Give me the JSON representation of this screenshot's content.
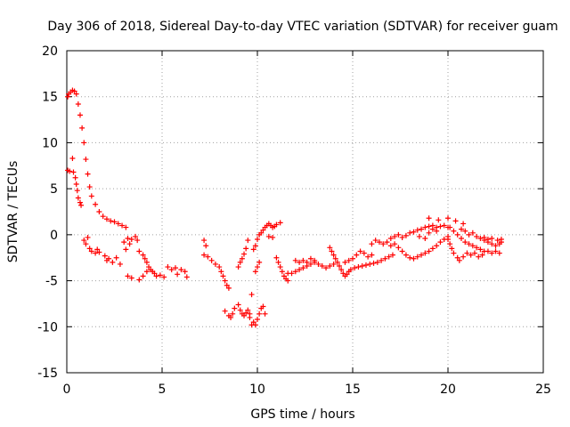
{
  "chart_data": {
    "type": "scatter",
    "title": "Day 306 of 2018, Sidereal Day-to-day VTEC variation (SDTVAR) for receiver guam",
    "xlabel": "GPS time / hours",
    "ylabel": "SDTVAR / TECUs",
    "xlim": [
      0,
      25
    ],
    "ylim": [
      -15,
      20
    ],
    "x_ticks": [
      0,
      5,
      10,
      15,
      20,
      25
    ],
    "y_ticks": [
      -15,
      -10,
      -5,
      0,
      5,
      10,
      15,
      20
    ],
    "x_tick_labels": [
      "0",
      "5",
      "10",
      "15",
      "20",
      "25"
    ],
    "y_tick_labels": [
      "-15",
      "-10",
      "-5",
      "0",
      "5",
      "10",
      "15",
      "20"
    ],
    "grid": true,
    "marker": "+",
    "series": [
      {
        "name": "SDTVAR",
        "color": "#ff0000",
        "points": [
          [
            0.05,
            15.0
          ],
          [
            0.1,
            15.3
          ],
          [
            0.2,
            15.5
          ],
          [
            0.3,
            15.7
          ],
          [
            0.4,
            15.6
          ],
          [
            0.5,
            15.3
          ],
          [
            0.6,
            14.2
          ],
          [
            0.7,
            13.0
          ],
          [
            0.8,
            11.6
          ],
          [
            0.9,
            10.0
          ],
          [
            1.0,
            8.2
          ],
          [
            1.1,
            6.6
          ],
          [
            1.2,
            5.2
          ],
          [
            1.3,
            4.2
          ],
          [
            1.5,
            3.3
          ],
          [
            1.7,
            2.5
          ],
          [
            1.9,
            2.0
          ],
          [
            2.1,
            1.7
          ],
          [
            2.3,
            1.5
          ],
          [
            2.5,
            1.4
          ],
          [
            2.7,
            1.2
          ],
          [
            2.9,
            1.0
          ],
          [
            3.1,
            0.8
          ],
          [
            0.05,
            7.0
          ],
          [
            0.15,
            6.9
          ],
          [
            0.3,
            8.3
          ],
          [
            0.35,
            6.8
          ],
          [
            0.45,
            6.2
          ],
          [
            0.5,
            5.5
          ],
          [
            0.55,
            4.8
          ],
          [
            0.6,
            4.0
          ],
          [
            0.7,
            3.5
          ],
          [
            0.75,
            3.2
          ],
          [
            0.9,
            -0.6
          ],
          [
            1.0,
            -1.0
          ],
          [
            1.1,
            -0.3
          ],
          [
            1.2,
            -1.5
          ],
          [
            1.3,
            -1.8
          ],
          [
            1.5,
            -2.0
          ],
          [
            1.6,
            -1.6
          ],
          [
            1.7,
            -1.9
          ],
          [
            2.0,
            -2.3
          ],
          [
            2.1,
            -2.8
          ],
          [
            2.2,
            -2.6
          ],
          [
            2.4,
            -3.0
          ],
          [
            2.6,
            -2.5
          ],
          [
            2.8,
            -3.2
          ],
          [
            3.0,
            -0.8
          ],
          [
            3.1,
            -1.6
          ],
          [
            3.2,
            -0.4
          ],
          [
            3.3,
            -1.0
          ],
          [
            3.4,
            -0.5
          ],
          [
            3.6,
            -0.2
          ],
          [
            3.7,
            -0.6
          ],
          [
            3.2,
            -4.5
          ],
          [
            3.4,
            -4.7
          ],
          [
            3.8,
            -4.9
          ],
          [
            4.0,
            -4.5
          ],
          [
            4.2,
            -4.0
          ],
          [
            3.8,
            -1.8
          ],
          [
            4.0,
            -2.2
          ],
          [
            4.1,
            -2.6
          ],
          [
            4.2,
            -3.0
          ],
          [
            4.3,
            -3.5
          ],
          [
            4.4,
            -3.8
          ],
          [
            4.5,
            -4.0
          ],
          [
            4.6,
            -4.2
          ],
          [
            4.7,
            -4.5
          ],
          [
            4.9,
            -4.4
          ],
          [
            5.1,
            -4.6
          ],
          [
            5.3,
            -3.5
          ],
          [
            5.5,
            -3.8
          ],
          [
            5.7,
            -3.6
          ],
          [
            5.8,
            -4.3
          ],
          [
            6.0,
            -3.8
          ],
          [
            6.2,
            -4.0
          ],
          [
            6.3,
            -4.6
          ],
          [
            7.2,
            -0.6
          ],
          [
            7.3,
            -1.2
          ],
          [
            7.2,
            -2.2
          ],
          [
            7.4,
            -2.4
          ],
          [
            7.6,
            -2.8
          ],
          [
            7.8,
            -3.2
          ],
          [
            8.0,
            -3.5
          ],
          [
            8.1,
            -4.0
          ],
          [
            8.2,
            -4.5
          ],
          [
            8.3,
            -5.0
          ],
          [
            8.4,
            -5.5
          ],
          [
            8.5,
            -5.8
          ],
          [
            8.3,
            -8.3
          ],
          [
            8.5,
            -8.8
          ],
          [
            8.6,
            -9.0
          ],
          [
            8.7,
            -8.6
          ],
          [
            8.8,
            -8.0
          ],
          [
            9.0,
            -7.6
          ],
          [
            9.1,
            -8.2
          ],
          [
            9.2,
            -8.6
          ],
          [
            9.3,
            -8.8
          ],
          [
            9.4,
            -8.5
          ],
          [
            9.5,
            -8.2
          ],
          [
            9.6,
            -8.6
          ],
          [
            9.0,
            -3.5
          ],
          [
            9.1,
            -3.0
          ],
          [
            9.2,
            -2.6
          ],
          [
            9.3,
            -2.1
          ],
          [
            9.4,
            -1.5
          ],
          [
            9.5,
            -0.6
          ],
          [
            9.6,
            -9.0
          ],
          [
            9.7,
            -9.8
          ],
          [
            9.8,
            -9.5
          ],
          [
            9.9,
            -9.8
          ],
          [
            10.0,
            -9.2
          ],
          [
            10.1,
            -8.6
          ],
          [
            10.2,
            -8.0
          ],
          [
            10.3,
            -7.8
          ],
          [
            10.4,
            -8.6
          ],
          [
            9.7,
            -6.5
          ],
          [
            9.9,
            -4.0
          ],
          [
            10.0,
            -3.5
          ],
          [
            10.1,
            -3.0
          ],
          [
            9.8,
            -1.6
          ],
          [
            9.9,
            -1.2
          ],
          [
            10.0,
            -0.5
          ],
          [
            10.1,
            0.0
          ],
          [
            10.2,
            0.2
          ],
          [
            10.3,
            0.5
          ],
          [
            10.4,
            0.8
          ],
          [
            10.5,
            1.0
          ],
          [
            10.6,
            1.2
          ],
          [
            10.7,
            1.0
          ],
          [
            10.8,
            0.8
          ],
          [
            10.9,
            0.9
          ],
          [
            11.0,
            1.1
          ],
          [
            11.2,
            1.3
          ],
          [
            10.6,
            -0.2
          ],
          [
            10.8,
            -0.3
          ],
          [
            11.0,
            -2.5
          ],
          [
            11.1,
            -3.0
          ],
          [
            11.2,
            -3.5
          ],
          [
            11.3,
            -4.0
          ],
          [
            11.4,
            -4.5
          ],
          [
            11.5,
            -4.8
          ],
          [
            11.6,
            -5.0
          ],
          [
            11.6,
            -4.2
          ],
          [
            11.8,
            -4.2
          ],
          [
            12.0,
            -4.0
          ],
          [
            12.2,
            -3.8
          ],
          [
            12.4,
            -3.6
          ],
          [
            12.6,
            -3.4
          ],
          [
            12.8,
            -3.2
          ],
          [
            13.0,
            -3.0
          ],
          [
            13.2,
            -3.2
          ],
          [
            13.4,
            -3.4
          ],
          [
            13.6,
            -3.6
          ],
          [
            13.8,
            -3.4
          ],
          [
            14.0,
            -3.2
          ],
          [
            12.0,
            -2.8
          ],
          [
            12.2,
            -3.0
          ],
          [
            12.4,
            -2.8
          ],
          [
            12.6,
            -3.0
          ],
          [
            12.8,
            -2.6
          ],
          [
            13.0,
            -2.8
          ],
          [
            13.8,
            -1.4
          ],
          [
            13.9,
            -1.8
          ],
          [
            14.0,
            -2.2
          ],
          [
            14.1,
            -2.6
          ],
          [
            14.2,
            -3.0
          ],
          [
            14.3,
            -3.4
          ],
          [
            14.4,
            -3.8
          ],
          [
            14.5,
            -4.2
          ],
          [
            14.6,
            -4.5
          ],
          [
            14.7,
            -4.3
          ],
          [
            14.8,
            -4.0
          ],
          [
            14.9,
            -3.8
          ],
          [
            15.1,
            -3.6
          ],
          [
            15.3,
            -3.5
          ],
          [
            15.5,
            -3.4
          ],
          [
            15.7,
            -3.3
          ],
          [
            15.9,
            -3.2
          ],
          [
            16.1,
            -3.1
          ],
          [
            16.3,
            -3.0
          ],
          [
            16.5,
            -2.8
          ],
          [
            16.7,
            -2.6
          ],
          [
            16.9,
            -2.4
          ],
          [
            17.1,
            -2.2
          ],
          [
            14.6,
            -3.0
          ],
          [
            14.8,
            -2.8
          ],
          [
            15.0,
            -2.6
          ],
          [
            15.2,
            -2.2
          ],
          [
            15.4,
            -1.8
          ],
          [
            15.6,
            -2.0
          ],
          [
            15.8,
            -2.4
          ],
          [
            16.0,
            -2.2
          ],
          [
            16.0,
            -1.0
          ],
          [
            16.2,
            -0.6
          ],
          [
            16.4,
            -0.8
          ],
          [
            16.6,
            -1.0
          ],
          [
            16.8,
            -0.8
          ],
          [
            17.0,
            -1.2
          ],
          [
            17.2,
            -1.0
          ],
          [
            17.4,
            -1.4
          ],
          [
            17.6,
            -1.8
          ],
          [
            17.8,
            -2.2
          ],
          [
            18.0,
            -2.5
          ],
          [
            18.2,
            -2.6
          ],
          [
            18.4,
            -2.4
          ],
          [
            18.6,
            -2.2
          ],
          [
            18.8,
            -2.0
          ],
          [
            19.0,
            -1.8
          ],
          [
            19.2,
            -1.5
          ],
          [
            19.4,
            -1.2
          ],
          [
            19.6,
            -0.8
          ],
          [
            19.8,
            -0.5
          ],
          [
            20.0,
            -0.2
          ],
          [
            17.0,
            -0.4
          ],
          [
            17.2,
            -0.2
          ],
          [
            17.4,
            0.0
          ],
          [
            17.6,
            -0.3
          ],
          [
            17.8,
            -0.1
          ],
          [
            18.0,
            0.2
          ],
          [
            18.2,
            0.3
          ],
          [
            18.4,
            0.5
          ],
          [
            18.6,
            0.6
          ],
          [
            18.8,
            0.8
          ],
          [
            19.0,
            0.9
          ],
          [
            19.2,
            1.0
          ],
          [
            19.4,
            0.8
          ],
          [
            19.6,
            0.9
          ],
          [
            19.8,
            1.0
          ],
          [
            20.0,
            0.8
          ],
          [
            18.5,
            -0.2
          ],
          [
            18.8,
            -0.4
          ],
          [
            19.0,
            0.2
          ],
          [
            19.2,
            0.6
          ],
          [
            19.4,
            0.4
          ],
          [
            19.0,
            1.8
          ],
          [
            19.5,
            1.6
          ],
          [
            20.0,
            1.8
          ],
          [
            20.4,
            1.5
          ],
          [
            20.8,
            1.2
          ],
          [
            20.1,
            0.8
          ],
          [
            20.3,
            0.4
          ],
          [
            20.5,
            0.0
          ],
          [
            20.7,
            -0.4
          ],
          [
            20.9,
            -0.8
          ],
          [
            21.1,
            -1.0
          ],
          [
            21.3,
            -1.2
          ],
          [
            21.5,
            -1.4
          ],
          [
            21.7,
            -1.6
          ],
          [
            21.9,
            -1.8
          ],
          [
            22.1,
            -1.8
          ],
          [
            22.3,
            -2.0
          ],
          [
            22.5,
            -1.8
          ],
          [
            22.7,
            -2.0
          ],
          [
            20.0,
            -0.5
          ],
          [
            20.1,
            -1.0
          ],
          [
            20.2,
            -1.5
          ],
          [
            20.3,
            -2.0
          ],
          [
            20.5,
            -2.5
          ],
          [
            20.6,
            -2.8
          ],
          [
            20.8,
            -2.4
          ],
          [
            21.0,
            -2.0
          ],
          [
            21.2,
            -2.2
          ],
          [
            21.4,
            -2.0
          ],
          [
            21.6,
            -2.4
          ],
          [
            21.8,
            -2.2
          ],
          [
            20.7,
            0.6
          ],
          [
            20.9,
            0.4
          ],
          [
            21.1,
            0.0
          ],
          [
            21.3,
            0.2
          ],
          [
            21.5,
            -0.2
          ],
          [
            21.7,
            -0.4
          ],
          [
            21.9,
            -0.6
          ],
          [
            22.1,
            -0.8
          ],
          [
            22.3,
            -1.0
          ],
          [
            22.5,
            -1.2
          ],
          [
            22.7,
            -1.0
          ],
          [
            22.8,
            -0.8
          ],
          [
            21.9,
            -0.3
          ],
          [
            22.1,
            -0.5
          ],
          [
            22.3,
            -0.4
          ],
          [
            22.6,
            -0.6
          ],
          [
            22.8,
            -0.5
          ]
        ]
      }
    ]
  }
}
